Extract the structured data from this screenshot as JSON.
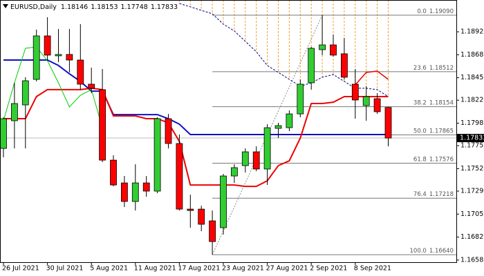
{
  "chart_data": {
    "type": "candlestick",
    "title": "EURUSD,Daily",
    "categories": [
      "26 Jul 2021",
      null,
      null,
      null,
      "30 Jul 2021",
      null,
      null,
      null,
      "5 Aug 2021",
      null,
      null,
      null,
      "11 Aug 2021",
      null,
      null,
      null,
      "17 Aug 2021",
      null,
      null,
      null,
      "23 Aug 2021",
      null,
      null,
      null,
      "27 Aug 2021",
      null,
      null,
      null,
      "2 Sep 2021",
      null,
      null,
      null,
      "8 Sep 2021",
      null,
      null,
      null
    ],
    "open": [
      1.17727,
      1.1801,
      1.18172,
      1.18433,
      1.18878,
      1.18674,
      1.18688,
      1.18631,
      1.18384,
      1.18328,
      1.17607,
      1.17374,
      1.17184,
      1.17374,
      1.1729,
      1.18031,
      1.17777,
      1.17106,
      1.17106,
      1.16986,
      1.16916,
      1.17445,
      1.17551,
      1.17692,
      1.17516,
      1.17932,
      1.17939,
      1.1808,
      1.18398,
      1.18737,
      1.18786,
      1.18695,
      1.18384,
      1.18165,
      1.18236,
      1.18146
    ],
    "high": [
      1.18045,
      1.18398,
      1.18455,
      1.18942,
      1.19069,
      1.18949,
      1.18949,
      1.18998,
      1.18553,
      1.18539,
      1.17657,
      1.17445,
      1.17565,
      1.17445,
      1.18045,
      1.1808,
      1.17869,
      1.17254,
      1.17141,
      1.17092,
      1.17466,
      1.17565,
      1.17727,
      1.17749,
      1.17975,
      1.17989,
      1.18116,
      1.18433,
      1.18765,
      1.1909,
      1.18892,
      1.18857,
      1.18539,
      1.18363,
      1.18292,
      1.18153
    ],
    "low": [
      1.17636,
      1.17727,
      1.17727,
      1.18412,
      1.18624,
      1.1861,
      1.18504,
      1.18328,
      1.18292,
      1.17586,
      1.17339,
      1.17127,
      1.17092,
      1.17233,
      1.17269,
      1.17727,
      1.17092,
      1.16916,
      1.1688,
      1.1664,
      1.16845,
      1.17374,
      1.1748,
      1.17494,
      1.17353,
      1.17833,
      1.17904,
      1.18045,
      1.18328,
      1.18681,
      1.18666,
      1.18433,
      1.18031,
      1.1801,
      1.1808,
      1.17748
    ],
    "close": [
      1.18031,
      1.18186,
      1.18419,
      1.18878,
      1.18681,
      1.18688,
      1.18631,
      1.18384,
      1.18342,
      1.17607,
      1.17353,
      1.17184,
      1.17374,
      1.1729,
      1.18031,
      1.17777,
      1.17106,
      1.17092,
      1.16951,
      1.16774,
      1.17445,
      1.1753,
      1.17692,
      1.17516,
      1.17939,
      1.1796,
      1.1808,
      1.18384,
      1.18751,
      1.18786,
      1.18681,
      1.18455,
      1.18222,
      1.18257,
      1.18102,
      1.17833
    ],
    "up_color": "#32cd32",
    "down_color": "#ff0000",
    "lines": [
      {
        "color": "#1010c0",
        "width": 2,
        "style": "solid",
        "values": [
          1.18631,
          1.18631,
          1.18631,
          1.18631,
          1.18631,
          1.18575,
          1.1849,
          1.18412,
          1.18313,
          1.18313,
          1.18073,
          1.18073,
          1.18073,
          1.18073,
          1.18073,
          1.18031,
          1.17975,
          1.17869,
          1.17869,
          1.17869,
          1.17869,
          1.17869,
          1.17869,
          1.17869,
          1.17869,
          1.17869,
          1.17869,
          1.17869,
          1.17869,
          1.17869,
          1.17869,
          1.17869,
          1.17869,
          1.17869,
          1.17869,
          1.17869
        ]
      },
      {
        "color": "#ee0000",
        "width": 2,
        "style": "solid",
        "values": [
          1.18031,
          1.18031,
          1.18031,
          1.18257,
          1.18328,
          1.18328,
          1.18328,
          1.18328,
          1.18342,
          1.18328,
          1.18059,
          1.18059,
          1.18059,
          1.18031,
          1.18031,
          1.17989,
          1.17798,
          1.17353,
          1.17353,
          1.17353,
          1.17353,
          1.17353,
          1.17339,
          1.17339,
          1.17396,
          1.17551,
          1.176,
          1.17833,
          1.18186,
          1.18186,
          1.182,
          1.18257,
          1.18257,
          1.18257,
          1.18257,
          1.18257
        ]
      },
      {
        "color": "#ee0000",
        "width": 1.5,
        "style": "solid",
        "values": [
          null,
          null,
          null,
          null,
          null,
          null,
          null,
          null,
          null,
          null,
          null,
          null,
          null,
          null,
          null,
          null,
          null,
          null,
          null,
          null,
          null,
          null,
          null,
          null,
          null,
          null,
          null,
          null,
          null,
          null,
          null,
          null,
          1.18377,
          1.18504,
          1.18518,
          1.18433
        ]
      },
      {
        "color": "#00cc00",
        "width": 1,
        "style": "solid",
        "values": [
          1.1801,
          1.18398,
          1.18751,
          1.18765,
          1.18624,
          1.18398,
          1.18151,
          1.18271,
          1.18328,
          1.17939,
          null,
          null,
          null,
          null,
          null,
          null,
          null,
          null,
          null,
          null,
          null,
          null,
          null,
          null,
          null,
          null,
          null,
          null,
          null,
          null,
          null,
          null,
          null,
          null,
          null,
          null
        ]
      },
      {
        "color": "#000080",
        "width": 1,
        "style": "dashed",
        "hatch": "#f0a030",
        "values": [
          null,
          null,
          null,
          null,
          null,
          null,
          null,
          null,
          null,
          null,
          null,
          null,
          null,
          null,
          null,
          null,
          1.1921,
          1.19175,
          1.19139,
          1.19104,
          1.18998,
          1.18928,
          1.18822,
          1.18716,
          1.18575,
          1.18504,
          1.18433,
          1.18363,
          1.18398,
          1.18455,
          1.18483,
          1.18412,
          1.18342,
          1.18342,
          1.18328,
          1.18257
        ]
      }
    ],
    "fibo": [
      {
        "level": "0.0",
        "price": 1.1909,
        "price_label": "1.19090"
      },
      {
        "level": "23.6",
        "price": 1.18512,
        "price_label": "1.18512"
      },
      {
        "level": "38.2",
        "price": 1.18154,
        "price_label": "1.18154"
      },
      {
        "level": "50.0",
        "price": 1.17865,
        "price_label": "1.17865"
      },
      {
        "level": "61.8",
        "price": 1.17576,
        "price_label": "1.17576"
      },
      {
        "level": "76.4",
        "price": 1.17218,
        "price_label": "1.17218"
      },
      {
        "level": "100.0",
        "price": 1.1664,
        "price_label": "1.16640"
      }
    ],
    "ylim": [
      1.16563,
      1.19245
    ],
    "yticks": [
      {
        "value": 1.1892,
        "label": "1.18920"
      },
      {
        "value": 1.18685,
        "label": "1.18685"
      },
      {
        "value": 1.1845,
        "label": "1.18450"
      },
      {
        "value": 1.1822,
        "label": "1.18220"
      },
      {
        "value": 1.17985,
        "label": "1.17985"
      },
      {
        "value": 1.17755,
        "label": "1.17755"
      },
      {
        "value": 1.1752,
        "label": "1.17520"
      },
      {
        "value": 1.1729,
        "label": "1.17290"
      },
      {
        "value": 1.17055,
        "label": "1.17055"
      },
      {
        "value": 1.1682,
        "label": "1.16820"
      },
      {
        "value": 1.16585,
        "label": "1.16585"
      }
    ]
  }
}
